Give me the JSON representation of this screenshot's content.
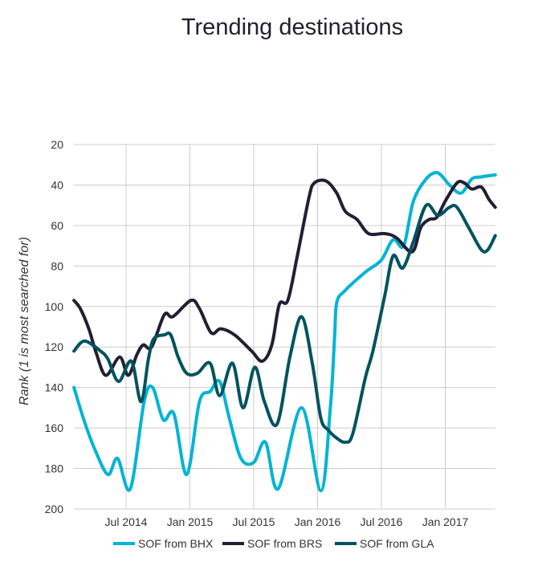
{
  "chart_data": {
    "type": "line",
    "title": "Trending destinations",
    "xlabel": "",
    "ylabel": "Rank (1 is most searched for)",
    "x_unit": "months since Jan 2014",
    "xlim": [
      1.1,
      40.7
    ],
    "ylim": [
      20,
      200
    ],
    "y_inverted": true,
    "grid": true,
    "legend_position": "bottom",
    "x_ticks": [
      {
        "value": 6,
        "label": "Jul 2014"
      },
      {
        "value": 12,
        "label": "Jan 2015"
      },
      {
        "value": 18,
        "label": "Jul 2015"
      },
      {
        "value": 24,
        "label": "Jan 2016"
      },
      {
        "value": 30,
        "label": "Jul 2016"
      },
      {
        "value": 36,
        "label": "Jan 2017"
      }
    ],
    "y_ticks": [
      "20",
      "40",
      "60",
      "80",
      "100",
      "120",
      "140",
      "160",
      "180",
      "200"
    ],
    "series": [
      {
        "name": "SOF from BHX",
        "color": "#00b4d4",
        "x": [
          1.1,
          2.1,
          3.1,
          4.3,
          5.2,
          6.4,
          7.7,
          8.5,
          9.5,
          10.5,
          11.7,
          12.9,
          13.9,
          14.8,
          15.7,
          16.8,
          18.0,
          19.1,
          20.3,
          22.5,
          24.3,
          25.2,
          25.6,
          25.8,
          26.6,
          28.5,
          30.0,
          31.1,
          32.1,
          33.0,
          34.2,
          35.3,
          36.4,
          37.5,
          38.5,
          39.4,
          40.7
        ],
        "values": [
          140,
          157,
          171,
          183,
          175,
          190,
          147,
          140,
          156,
          153,
          183,
          147,
          142,
          137,
          155,
          175,
          177,
          167,
          190,
          150,
          191,
          150,
          115,
          98,
          92,
          83,
          77,
          67,
          70,
          48,
          37,
          34,
          40,
          44,
          37,
          36,
          35
        ]
      },
      {
        "name": "SOF from BRS",
        "color": "#241e33",
        "x": [
          1.1,
          1.7,
          2.5,
          3.2,
          4.1,
          5.4,
          6.2,
          7.0,
          7.6,
          8.4,
          9.6,
          10.4,
          12.1,
          12.9,
          14.0,
          14.9,
          16.2,
          17.8,
          18.8,
          19.7,
          20.4,
          21.2,
          22.1,
          23.2,
          23.7,
          24.8,
          25.8,
          26.6,
          27.7,
          28.8,
          30.3,
          31.4,
          32.9,
          33.7,
          34.5,
          35.2,
          36.0,
          37.1,
          37.8,
          38.5,
          39.4,
          40.1,
          40.7
        ],
        "values": [
          97,
          101,
          111,
          123,
          134,
          125,
          134,
          124,
          119,
          120,
          104,
          105,
          97,
          101,
          113,
          111,
          114,
          122,
          127,
          119,
          99,
          97,
          75,
          46,
          39,
          38,
          44,
          53,
          57,
          64,
          64,
          66,
          73,
          61,
          57,
          56,
          48,
          39,
          39,
          42,
          41,
          47,
          51
        ]
      },
      {
        "name": "SOF from GLA",
        "color": "#00535f",
        "x": [
          1.1,
          2.1,
          3.6,
          4.3,
          5.3,
          6.5,
          7.4,
          8.1,
          8.6,
          9.6,
          10.2,
          10.9,
          11.7,
          12.7,
          13.9,
          14.8,
          16.0,
          17.0,
          18.1,
          19.0,
          20.2,
          21.4,
          22.5,
          23.5,
          24.3,
          25.0,
          25.8,
          26.6,
          27.3,
          28.5,
          29.2,
          30.3,
          31.1,
          32.0,
          33.0,
          34.2,
          35.3,
          36.4,
          37.1,
          38.3,
          39.4,
          40.0,
          40.7
        ],
        "values": [
          122,
          117,
          122,
          126,
          137,
          127,
          147,
          126,
          116,
          114,
          114,
          125,
          133,
          133,
          128,
          144,
          128,
          150,
          130,
          147,
          158,
          125,
          105,
          128,
          155,
          161,
          165,
          167,
          163,
          135,
          122,
          95,
          75,
          81,
          68,
          50,
          55,
          51,
          51,
          62,
          72,
          72,
          65
        ]
      }
    ]
  }
}
